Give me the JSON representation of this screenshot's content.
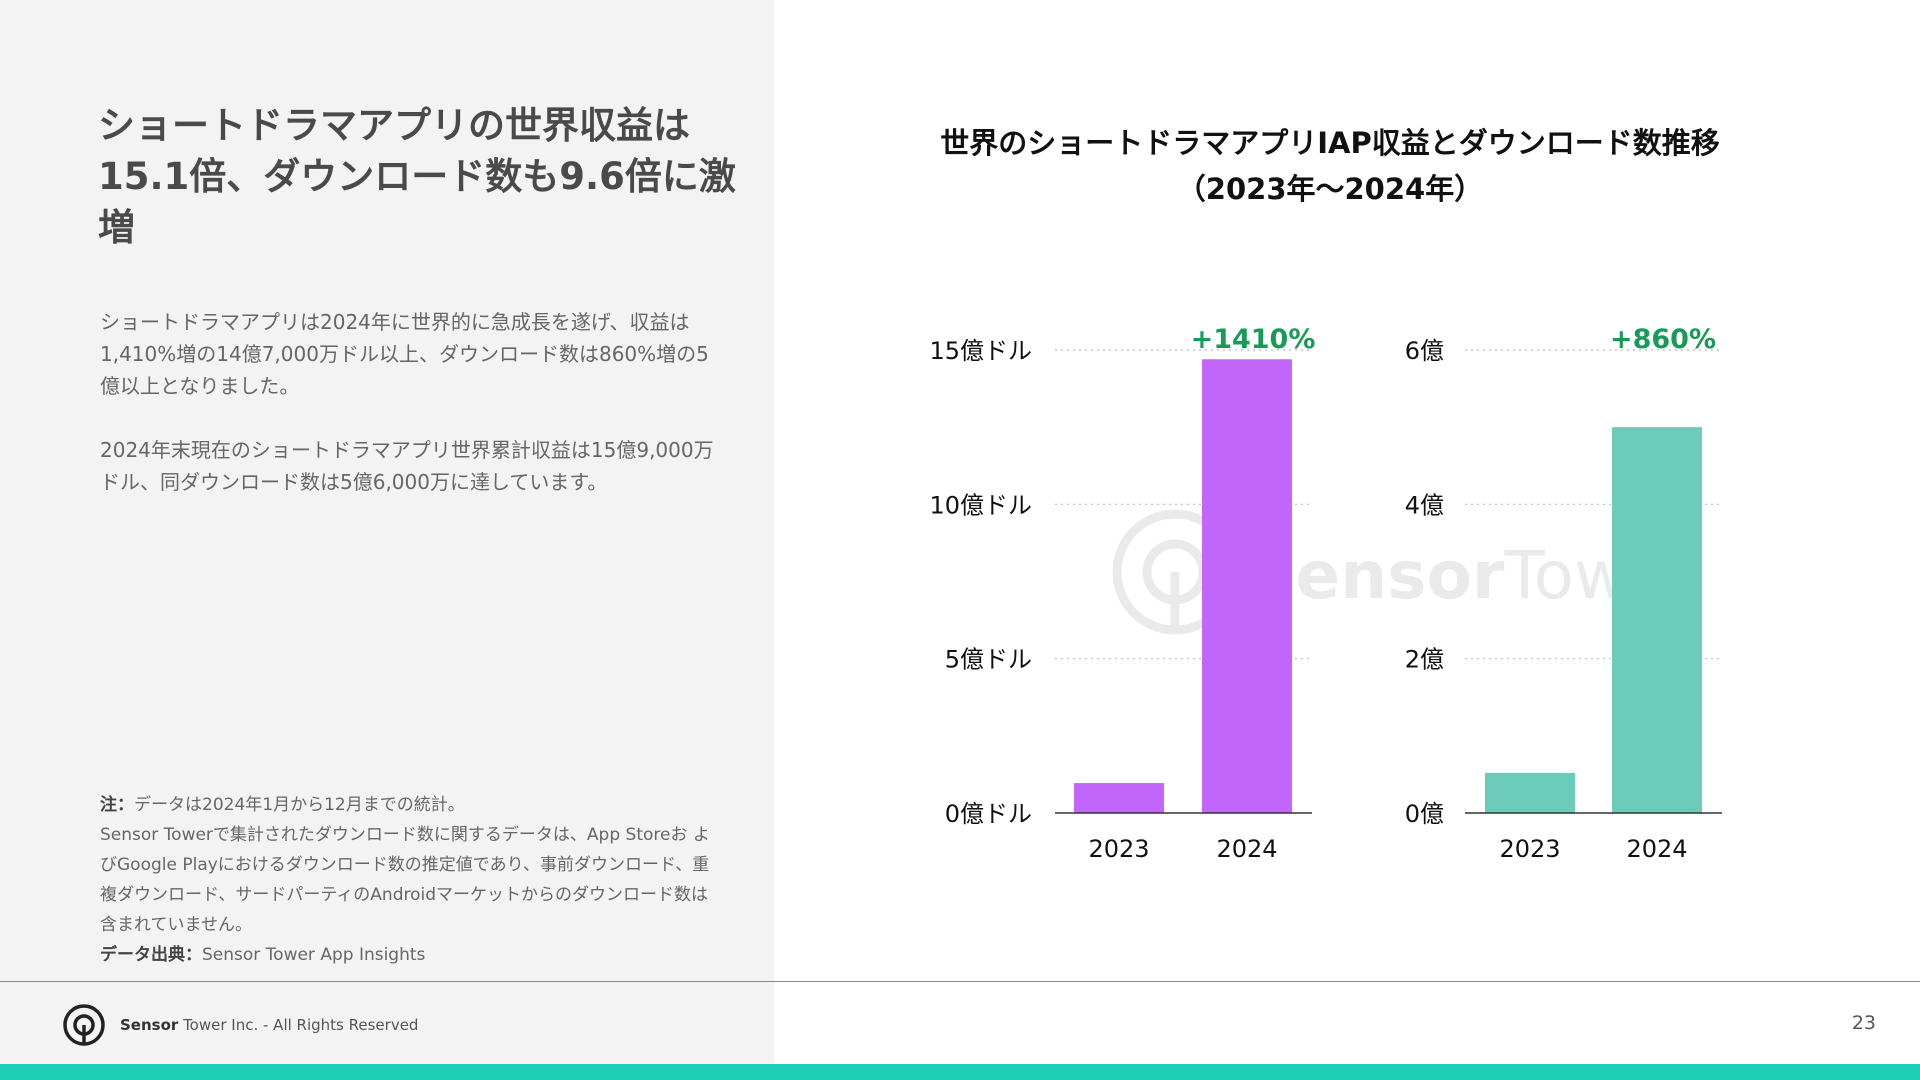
{
  "slide": {
    "title": "ショートドラマアプリの世界収益は15.1倍、ダウンロード数も9.6倍に激増",
    "paragraph1": "ショートドラマアプリは2024年に世界的に急成長を遂げ、収益は1,410%増の14億7,000万ドル以上、ダウンロード数は860%増の5億以上となりました。",
    "paragraph2": "2024年末現在のショートドラマアプリ世界累計収益は15億9,000万ドル、同ダウンロード数は5億6,000万に達しています。",
    "note_label": "注：",
    "note_text": "データは2024年1月から12月までの統計。",
    "note_text2": "Sensor Towerで集計されたダウンロード数に関するデータは、App Storeお よびGoogle Playにおけるダウンロード数の推定値であり、事前ダウンロード、重複ダウンロード、サードパーティのAndroidマーケットからのダウンロード数は含まれていません。",
    "source_label": "データ出典：",
    "source_text": "Sensor Tower App Insights"
  },
  "chart_title_line1": "世界のショートドラマアプリIAP収益とダウンロード数推移",
  "chart_title_line2": "（2023年～2024年）",
  "watermark": {
    "brand_bold": "Sensor",
    "brand_light": "Tower"
  },
  "colors": {
    "revenue": "#c266fa",
    "downloads": "#6ccbb9",
    "growth": "#1a9a57",
    "accent_bar": "#1ccfb5"
  },
  "chart_data": [
    {
      "type": "bar",
      "series_name": "IAP収益",
      "categories": [
        "2023",
        "2024"
      ],
      "values": [
        0.97,
        14.7
      ],
      "unit": "億ドル",
      "ylim": [
        0,
        15
      ],
      "yticks": [
        0,
        5,
        10,
        15
      ],
      "ytick_labels": [
        "0億ドル",
        "5億ドル",
        "10億ドル",
        "15億ドル"
      ],
      "annotation": "+1410%",
      "grid": true
    },
    {
      "type": "bar",
      "series_name": "ダウンロード数",
      "categories": [
        "2023",
        "2024"
      ],
      "values": [
        0.52,
        5.0
      ],
      "unit": "億",
      "ylim": [
        0,
        6
      ],
      "yticks": [
        0,
        2,
        4,
        6
      ],
      "ytick_labels": [
        "0億",
        "2億",
        "4億",
        "6億"
      ],
      "annotation": "+860%",
      "grid": true
    }
  ],
  "footer": {
    "brand_bold": "Sensor",
    "brand_rest": " Tower Inc. - All Rights Reserved",
    "page_number": "23"
  }
}
